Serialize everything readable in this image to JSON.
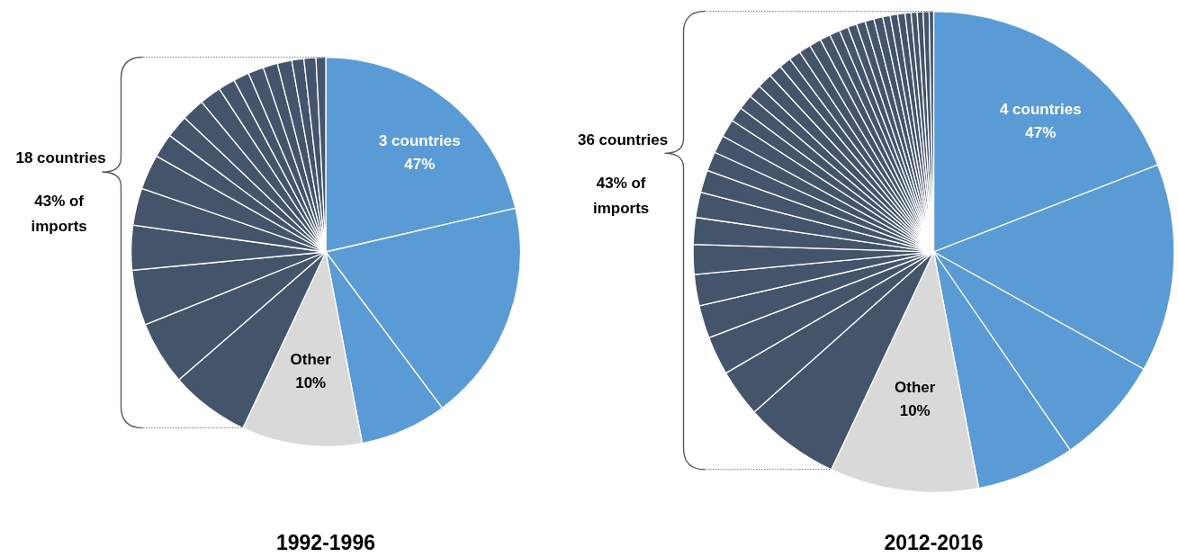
{
  "chart_data": [
    {
      "type": "pie",
      "title": "1992-1996",
      "categories": [
        null,
        null,
        null,
        "Other",
        null,
        null,
        null,
        null,
        null,
        null,
        null,
        null,
        null,
        null,
        null,
        null,
        null,
        null,
        null,
        null,
        null,
        null
      ],
      "values": [
        21.4,
        18.4,
        7.2,
        10,
        6.6,
        5.3,
        4.6,
        3.7,
        3.1,
        2.9,
        2.0,
        1.9,
        1.9,
        1.8,
        1.4,
        1.3,
        1.3,
        1.2,
        1.2,
        1.0,
        1.0,
        0.8
      ],
      "colors": [
        "#5b9bd5",
        "#5b9bd5",
        "#5b9bd5",
        "#d9d9d9",
        "#44546a",
        "#44546a",
        "#44546a",
        "#44546a",
        "#44546a",
        "#44546a",
        "#44546a",
        "#44546a",
        "#44546a",
        "#44546a",
        "#44546a",
        "#44546a",
        "#44546a",
        "#44546a",
        "#44546a",
        "#44546a",
        "#44546a",
        "#44546a"
      ],
      "value_labels": [
        null,
        null,
        null,
        "10%",
        null,
        null,
        null,
        null,
        null,
        null,
        null,
        null,
        null,
        null,
        null,
        null,
        null,
        null,
        null,
        null,
        null,
        null
      ],
      "annotations": [
        "3 countries",
        "47%",
        "18 countries",
        "43% of imports"
      ]
    },
    {
      "type": "pie",
      "title": "2012-2016",
      "categories": [
        null,
        null,
        null,
        null,
        "Other",
        null,
        null,
        null,
        null,
        null,
        null,
        null,
        null,
        null,
        null,
        null,
        null,
        null,
        null,
        null,
        null,
        null,
        null,
        null,
        null,
        null,
        null,
        null,
        null,
        null,
        null,
        null,
        null,
        null,
        null,
        null,
        null,
        null,
        null,
        null,
        null
      ],
      "values": [
        19.1,
        14.0,
        7.3,
        6.6,
        10,
        6.4,
        3.2,
        2.6,
        2.2,
        2.1,
        2.0,
        1.8,
        1.7,
        1.5,
        1.3,
        1.2,
        1.2,
        1.0,
        1.0,
        0.9,
        1.0,
        0.9,
        0.8,
        0.8,
        0.8,
        0.8,
        0.7,
        0.7,
        0.6,
        0.6,
        0.6,
        0.6,
        0.6,
        0.5,
        0.5,
        0.5,
        0.4,
        0.4,
        0.4,
        0.4,
        0.3
      ],
      "colors": [
        "#5b9bd5",
        "#5b9bd5",
        "#5b9bd5",
        "#5b9bd5",
        "#d9d9d9",
        "#44546a",
        "#44546a",
        "#44546a",
        "#44546a",
        "#44546a",
        "#44546a",
        "#44546a",
        "#44546a",
        "#44546a",
        "#44546a",
        "#44546a",
        "#44546a",
        "#44546a",
        "#44546a",
        "#44546a",
        "#44546a",
        "#44546a",
        "#44546a",
        "#44546a",
        "#44546a",
        "#44546a",
        "#44546a",
        "#44546a",
        "#44546a",
        "#44546a",
        "#44546a",
        "#44546a",
        "#44546a",
        "#44546a",
        "#44546a",
        "#44546a",
        "#44546a",
        "#44546a",
        "#44546a",
        "#44546a",
        "#44546a"
      ],
      "value_labels": [
        null,
        null,
        null,
        null,
        "10%",
        null,
        null,
        null,
        null,
        null,
        null,
        null,
        null,
        null,
        null,
        null,
        null,
        null,
        null,
        null,
        null,
        null,
        null,
        null,
        null,
        null,
        null,
        null,
        null,
        null,
        null,
        null,
        null,
        null,
        null,
        null,
        null,
        null,
        null,
        null,
        null
      ],
      "annotations": [
        "4 countries",
        "47%",
        "36 countries",
        "43% of imports"
      ]
    }
  ]
}
